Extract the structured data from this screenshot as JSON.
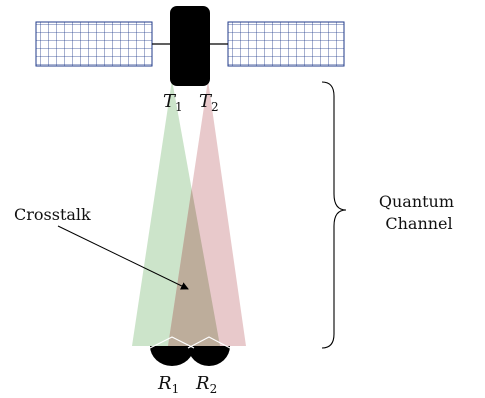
{
  "diagram": {
    "labels": {
      "t1": "T",
      "t1_sub": "1",
      "t2": "T",
      "t2_sub": "2",
      "r1": "R",
      "r1_sub": "1",
      "r2": "R",
      "r2_sub": "2",
      "crosstalk": "Crosstalk",
      "quantum_line1": "Quantum",
      "quantum_line2": "Channel"
    },
    "colors": {
      "beam_left": "#c9e3c7",
      "beam_right": "#e5c3c5",
      "beam_overlap": "#b8aa96",
      "panel_grid": "#1f3a8a",
      "satellite_body": "#000000",
      "receiver": "#000000"
    },
    "icons": {
      "satellite": "satellite-icon",
      "receiver": "dish-receiver-icon"
    }
  }
}
